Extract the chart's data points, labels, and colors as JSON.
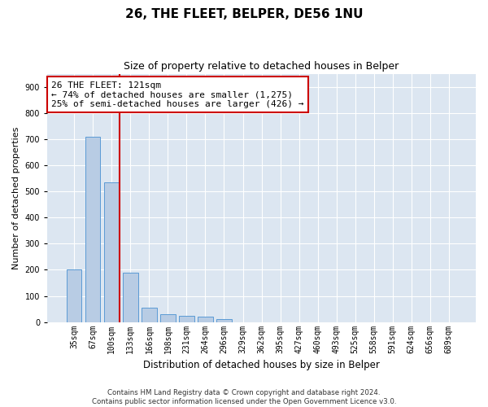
{
  "title": "26, THE FLEET, BELPER, DE56 1NU",
  "subtitle": "Size of property relative to detached houses in Belper",
  "xlabel": "Distribution of detached houses by size in Belper",
  "ylabel": "Number of detached properties",
  "categories": [
    "35sqm",
    "67sqm",
    "100sqm",
    "133sqm",
    "166sqm",
    "198sqm",
    "231sqm",
    "264sqm",
    "296sqm",
    "329sqm",
    "362sqm",
    "395sqm",
    "427sqm",
    "460sqm",
    "493sqm",
    "525sqm",
    "558sqm",
    "591sqm",
    "624sqm",
    "656sqm",
    "689sqm"
  ],
  "values": [
    200,
    710,
    535,
    190,
    55,
    30,
    25,
    20,
    10,
    0,
    0,
    0,
    0,
    0,
    0,
    0,
    0,
    0,
    0,
    0,
    0
  ],
  "bar_color": "#b8cce4",
  "bar_edgecolor": "#5b9bd5",
  "vline_color": "#cc0000",
  "annotation_line1": "26 THE FLEET: 121sqm",
  "annotation_line2": "← 74% of detached houses are smaller (1,275)",
  "annotation_line3": "25% of semi-detached houses are larger (426) →",
  "annotation_boxcolor": "white",
  "annotation_edgecolor": "#cc0000",
  "ylim": [
    0,
    950
  ],
  "yticks": [
    0,
    100,
    200,
    300,
    400,
    500,
    600,
    700,
    800,
    900
  ],
  "plot_bg_color": "#dce6f1",
  "grid_color": "white",
  "title_fontsize": 11,
  "subtitle_fontsize": 9,
  "xlabel_fontsize": 8.5,
  "ylabel_fontsize": 8,
  "tick_fontsize": 7,
  "annotation_fontsize": 8,
  "footer": "Contains HM Land Registry data © Crown copyright and database right 2024.\nContains public sector information licensed under the Open Government Licence v3.0."
}
